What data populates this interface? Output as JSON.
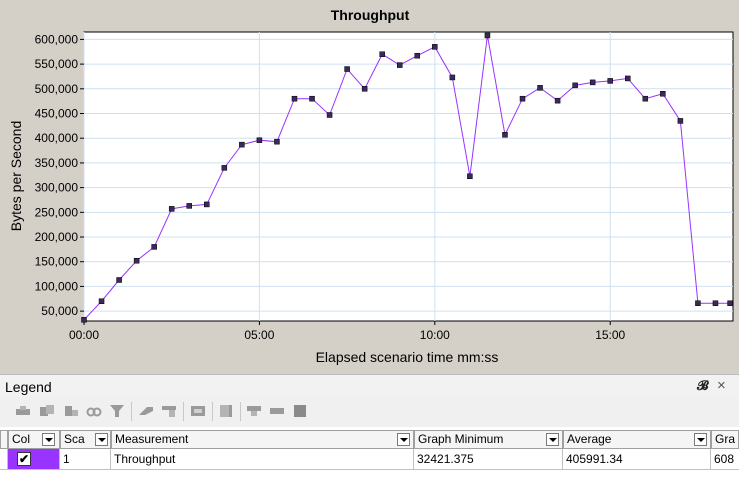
{
  "chart": {
    "title": "Throughput",
    "xlabel": "Elapsed scenario time mm:ss",
    "ylabel": "Bytes per Second",
    "y_ticks": [
      "600,000",
      "550,000",
      "500,000",
      "450,000",
      "400,000",
      "350,000",
      "300,000",
      "250,000",
      "200,000",
      "150,000",
      "100,000",
      "50,000"
    ],
    "x_ticks": [
      "00:00",
      "05:00",
      "10:00",
      "15:00"
    ]
  },
  "chart_data": {
    "type": "line",
    "title": "Throughput",
    "xlabel": "Elapsed scenario time mm:ss",
    "ylabel": "Bytes per Second",
    "x_unit": "seconds",
    "xlim": [
      0,
      1110
    ],
    "ylim": [
      30000,
      615000
    ],
    "grid": true,
    "series": [
      {
        "name": "Throughput",
        "color": "#9933ff",
        "x": [
          0,
          30,
          60,
          90,
          120,
          150,
          180,
          210,
          240,
          270,
          300,
          330,
          360,
          390,
          420,
          450,
          480,
          510,
          540,
          570,
          600,
          630,
          660,
          690,
          720,
          750,
          780,
          810,
          840,
          870,
          900,
          930,
          960,
          990,
          1020,
          1050,
          1080,
          1105
        ],
        "y": [
          32421,
          70000,
          113000,
          152000,
          180000,
          257000,
          263000,
          266000,
          340000,
          387000,
          396000,
          393000,
          480000,
          480000,
          447000,
          540000,
          500000,
          570000,
          548000,
          567000,
          585000,
          523000,
          323000,
          608000,
          407000,
          480000,
          502000,
          476000,
          507000,
          513000,
          516000,
          521000,
          480000,
          490000,
          435000,
          66000,
          66000,
          66000
        ]
      }
    ]
  },
  "legend": {
    "title": "Legend",
    "toolbar_icons": [
      "configure-icon",
      "configure-all-icon",
      "configure-measurement-icon",
      "link-icon",
      "filter-icon",
      "show-all-icon",
      "hide-icon",
      "properties-icon",
      "export-icon",
      "hide-graph-icon",
      "show-graph-icon",
      "delete-icon"
    ],
    "columns": [
      {
        "label": "Col"
      },
      {
        "label": "Sca"
      },
      {
        "label": "Measurement"
      },
      {
        "label": "Graph Minimum"
      },
      {
        "label": "Average"
      },
      {
        "label": "Gra"
      }
    ],
    "rows": [
      {
        "checked": "✔",
        "color": "#9933ff",
        "scale": "1",
        "measurement": "Throughput",
        "graph_minimum": "32421.375",
        "average": "405991.34",
        "graph_maximum": "608"
      }
    ]
  }
}
